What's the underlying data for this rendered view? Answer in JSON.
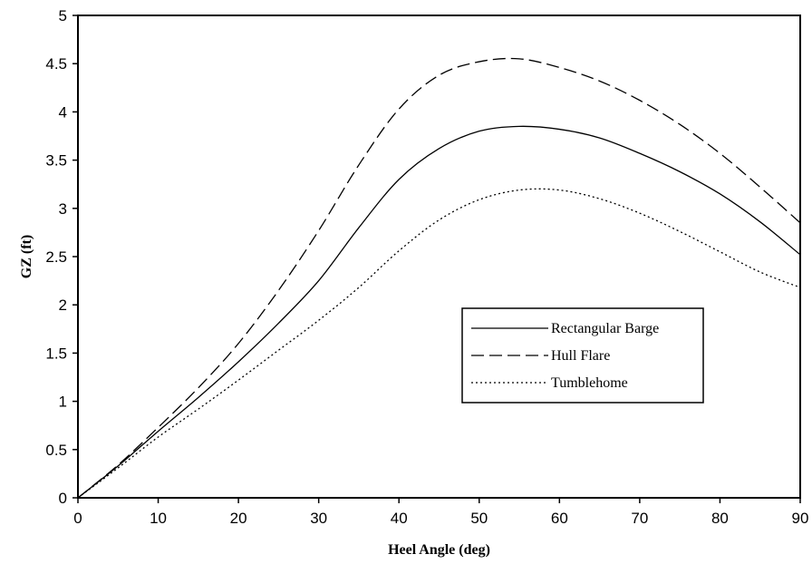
{
  "chart_data": {
    "type": "line",
    "xlabel": "Heel Angle (deg)",
    "ylabel": "GZ (ft)",
    "xlim": [
      0,
      90
    ],
    "ylim": [
      0,
      5
    ],
    "xticks": [
      0,
      10,
      20,
      30,
      40,
      50,
      60,
      70,
      80,
      90
    ],
    "yticks": [
      0,
      0.5,
      1,
      1.5,
      2,
      2.5,
      3,
      3.5,
      4,
      4.5,
      5
    ],
    "xtick_labels": [
      "0",
      "10",
      "20",
      "30",
      "40",
      "50",
      "60",
      "70",
      "80",
      "90"
    ],
    "ytick_labels": [
      "0",
      "0.5",
      "1",
      "1.5",
      "2",
      "2.5",
      "3",
      "3.5",
      "4",
      "4.5",
      "5"
    ],
    "grid": false,
    "legend_position": "center-right",
    "series": [
      {
        "name": "Rectangular Barge",
        "style": "solid",
        "color": "#000000",
        "x": [
          0,
          5,
          10,
          15,
          20,
          25,
          30,
          35,
          40,
          45,
          50,
          55,
          60,
          65,
          70,
          75,
          80,
          85,
          90
        ],
        "y": [
          0,
          0.33,
          0.69,
          1.04,
          1.41,
          1.81,
          2.25,
          2.8,
          3.3,
          3.62,
          3.8,
          3.85,
          3.82,
          3.73,
          3.57,
          3.38,
          3.15,
          2.86,
          2.52
        ]
      },
      {
        "name": "Hull Flare",
        "style": "dashed",
        "color": "#000000",
        "x": [
          0,
          5,
          10,
          15,
          20,
          25,
          30,
          35,
          40,
          45,
          50,
          55,
          60,
          65,
          70,
          75,
          80,
          85,
          90
        ],
        "y": [
          0,
          0.34,
          0.73,
          1.14,
          1.6,
          2.15,
          2.77,
          3.45,
          4.03,
          4.38,
          4.52,
          4.55,
          4.46,
          4.32,
          4.12,
          3.87,
          3.57,
          3.22,
          2.85
        ]
      },
      {
        "name": "Tumblehome",
        "style": "dotted",
        "color": "#000000",
        "x": [
          0,
          5,
          10,
          15,
          20,
          25,
          30,
          35,
          40,
          45,
          50,
          55,
          60,
          65,
          70,
          75,
          80,
          85,
          90
        ],
        "y": [
          0,
          0.31,
          0.63,
          0.92,
          1.22,
          1.53,
          1.84,
          2.18,
          2.56,
          2.88,
          3.09,
          3.19,
          3.19,
          3.1,
          2.95,
          2.76,
          2.55,
          2.34,
          2.18
        ]
      }
    ]
  }
}
